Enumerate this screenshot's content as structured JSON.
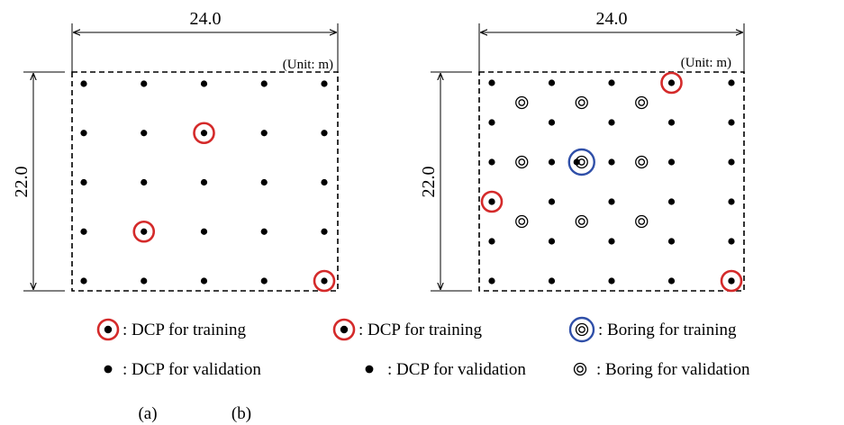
{
  "diagrams": [
    {
      "id": "a",
      "width_label": "24.0",
      "height_label": "22.0",
      "unit_label": "(Unit: m)",
      "grid": {
        "rows": 5,
        "cols": 5
      },
      "dcp_training": [
        [
          1,
          2
        ],
        [
          3,
          1
        ],
        [
          4,
          4
        ]
      ],
      "borings": [],
      "boring_training": [],
      "edge_dcp_training": []
    },
    {
      "id": "b",
      "width_label": "24.0",
      "height_label": "22.0",
      "unit_label": "(Unit: m)",
      "grid": {
        "rows": 6,
        "cols": 5
      },
      "dcp_training": [
        [
          0,
          3
        ]
      ],
      "borings": [
        [
          0.5,
          0.5
        ],
        [
          0.5,
          1.5
        ],
        [
          0.5,
          2.5
        ],
        [
          2,
          0.5
        ],
        [
          2,
          1.5
        ],
        [
          2,
          2.5
        ],
        [
          3.5,
          0.5
        ],
        [
          3.5,
          1.5
        ],
        [
          3.5,
          2.5
        ]
      ],
      "boring_training": [
        [
          2,
          1.5
        ]
      ],
      "edge_dcp_training": [
        [
          3,
          0
        ],
        [
          5,
          4
        ]
      ]
    }
  ],
  "legend": {
    "a": {
      "training_label": ": DCP for training",
      "validation_label": ": DCP for validation"
    },
    "b": {
      "training_label": ": DCP for training",
      "validation_label": ": DCP for validation",
      "boring_training_label": ": Boring for training",
      "boring_validation_label": ": Boring for validation"
    }
  },
  "captions": {
    "a": "(a)",
    "b": "(b)"
  },
  "colors": {
    "training_ring": "#d42a2a",
    "boring_training_ring": "#2f4fa8",
    "dot": "#000000"
  }
}
